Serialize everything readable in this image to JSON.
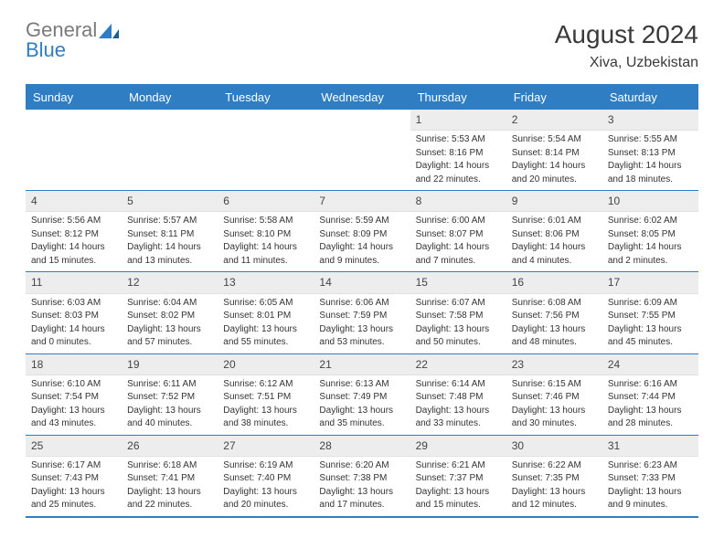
{
  "brand": {
    "part1": "General",
    "part2": "Blue"
  },
  "title": "August 2024",
  "subtitle": "Xiva, Uzbekistan",
  "colors": {
    "accent": "#2f7ec3",
    "header_bg": "#2f7ec3",
    "header_text": "#ffffff",
    "daynum_bg": "#ededed",
    "border": "#2f7ec3",
    "text": "#333333",
    "logo_gray": "#7a7a7a"
  },
  "day_names": [
    "Sunday",
    "Monday",
    "Tuesday",
    "Wednesday",
    "Thursday",
    "Friday",
    "Saturday"
  ],
  "weeks": [
    [
      {
        "blank": true
      },
      {
        "blank": true
      },
      {
        "blank": true
      },
      {
        "blank": true
      },
      {
        "num": "1",
        "sunrise": "Sunrise: 5:53 AM",
        "sunset": "Sunset: 8:16 PM",
        "daylight1": "Daylight: 14 hours",
        "daylight2": "and 22 minutes."
      },
      {
        "num": "2",
        "sunrise": "Sunrise: 5:54 AM",
        "sunset": "Sunset: 8:14 PM",
        "daylight1": "Daylight: 14 hours",
        "daylight2": "and 20 minutes."
      },
      {
        "num": "3",
        "sunrise": "Sunrise: 5:55 AM",
        "sunset": "Sunset: 8:13 PM",
        "daylight1": "Daylight: 14 hours",
        "daylight2": "and 18 minutes."
      }
    ],
    [
      {
        "num": "4",
        "sunrise": "Sunrise: 5:56 AM",
        "sunset": "Sunset: 8:12 PM",
        "daylight1": "Daylight: 14 hours",
        "daylight2": "and 15 minutes."
      },
      {
        "num": "5",
        "sunrise": "Sunrise: 5:57 AM",
        "sunset": "Sunset: 8:11 PM",
        "daylight1": "Daylight: 14 hours",
        "daylight2": "and 13 minutes."
      },
      {
        "num": "6",
        "sunrise": "Sunrise: 5:58 AM",
        "sunset": "Sunset: 8:10 PM",
        "daylight1": "Daylight: 14 hours",
        "daylight2": "and 11 minutes."
      },
      {
        "num": "7",
        "sunrise": "Sunrise: 5:59 AM",
        "sunset": "Sunset: 8:09 PM",
        "daylight1": "Daylight: 14 hours",
        "daylight2": "and 9 minutes."
      },
      {
        "num": "8",
        "sunrise": "Sunrise: 6:00 AM",
        "sunset": "Sunset: 8:07 PM",
        "daylight1": "Daylight: 14 hours",
        "daylight2": "and 7 minutes."
      },
      {
        "num": "9",
        "sunrise": "Sunrise: 6:01 AM",
        "sunset": "Sunset: 8:06 PM",
        "daylight1": "Daylight: 14 hours",
        "daylight2": "and 4 minutes."
      },
      {
        "num": "10",
        "sunrise": "Sunrise: 6:02 AM",
        "sunset": "Sunset: 8:05 PM",
        "daylight1": "Daylight: 14 hours",
        "daylight2": "and 2 minutes."
      }
    ],
    [
      {
        "num": "11",
        "sunrise": "Sunrise: 6:03 AM",
        "sunset": "Sunset: 8:03 PM",
        "daylight1": "Daylight: 14 hours",
        "daylight2": "and 0 minutes."
      },
      {
        "num": "12",
        "sunrise": "Sunrise: 6:04 AM",
        "sunset": "Sunset: 8:02 PM",
        "daylight1": "Daylight: 13 hours",
        "daylight2": "and 57 minutes."
      },
      {
        "num": "13",
        "sunrise": "Sunrise: 6:05 AM",
        "sunset": "Sunset: 8:01 PM",
        "daylight1": "Daylight: 13 hours",
        "daylight2": "and 55 minutes."
      },
      {
        "num": "14",
        "sunrise": "Sunrise: 6:06 AM",
        "sunset": "Sunset: 7:59 PM",
        "daylight1": "Daylight: 13 hours",
        "daylight2": "and 53 minutes."
      },
      {
        "num": "15",
        "sunrise": "Sunrise: 6:07 AM",
        "sunset": "Sunset: 7:58 PM",
        "daylight1": "Daylight: 13 hours",
        "daylight2": "and 50 minutes."
      },
      {
        "num": "16",
        "sunrise": "Sunrise: 6:08 AM",
        "sunset": "Sunset: 7:56 PM",
        "daylight1": "Daylight: 13 hours",
        "daylight2": "and 48 minutes."
      },
      {
        "num": "17",
        "sunrise": "Sunrise: 6:09 AM",
        "sunset": "Sunset: 7:55 PM",
        "daylight1": "Daylight: 13 hours",
        "daylight2": "and 45 minutes."
      }
    ],
    [
      {
        "num": "18",
        "sunrise": "Sunrise: 6:10 AM",
        "sunset": "Sunset: 7:54 PM",
        "daylight1": "Daylight: 13 hours",
        "daylight2": "and 43 minutes."
      },
      {
        "num": "19",
        "sunrise": "Sunrise: 6:11 AM",
        "sunset": "Sunset: 7:52 PM",
        "daylight1": "Daylight: 13 hours",
        "daylight2": "and 40 minutes."
      },
      {
        "num": "20",
        "sunrise": "Sunrise: 6:12 AM",
        "sunset": "Sunset: 7:51 PM",
        "daylight1": "Daylight: 13 hours",
        "daylight2": "and 38 minutes."
      },
      {
        "num": "21",
        "sunrise": "Sunrise: 6:13 AM",
        "sunset": "Sunset: 7:49 PM",
        "daylight1": "Daylight: 13 hours",
        "daylight2": "and 35 minutes."
      },
      {
        "num": "22",
        "sunrise": "Sunrise: 6:14 AM",
        "sunset": "Sunset: 7:48 PM",
        "daylight1": "Daylight: 13 hours",
        "daylight2": "and 33 minutes."
      },
      {
        "num": "23",
        "sunrise": "Sunrise: 6:15 AM",
        "sunset": "Sunset: 7:46 PM",
        "daylight1": "Daylight: 13 hours",
        "daylight2": "and 30 minutes."
      },
      {
        "num": "24",
        "sunrise": "Sunrise: 6:16 AM",
        "sunset": "Sunset: 7:44 PM",
        "daylight1": "Daylight: 13 hours",
        "daylight2": "and 28 minutes."
      }
    ],
    [
      {
        "num": "25",
        "sunrise": "Sunrise: 6:17 AM",
        "sunset": "Sunset: 7:43 PM",
        "daylight1": "Daylight: 13 hours",
        "daylight2": "and 25 minutes."
      },
      {
        "num": "26",
        "sunrise": "Sunrise: 6:18 AM",
        "sunset": "Sunset: 7:41 PM",
        "daylight1": "Daylight: 13 hours",
        "daylight2": "and 22 minutes."
      },
      {
        "num": "27",
        "sunrise": "Sunrise: 6:19 AM",
        "sunset": "Sunset: 7:40 PM",
        "daylight1": "Daylight: 13 hours",
        "daylight2": "and 20 minutes."
      },
      {
        "num": "28",
        "sunrise": "Sunrise: 6:20 AM",
        "sunset": "Sunset: 7:38 PM",
        "daylight1": "Daylight: 13 hours",
        "daylight2": "and 17 minutes."
      },
      {
        "num": "29",
        "sunrise": "Sunrise: 6:21 AM",
        "sunset": "Sunset: 7:37 PM",
        "daylight1": "Daylight: 13 hours",
        "daylight2": "and 15 minutes."
      },
      {
        "num": "30",
        "sunrise": "Sunrise: 6:22 AM",
        "sunset": "Sunset: 7:35 PM",
        "daylight1": "Daylight: 13 hours",
        "daylight2": "and 12 minutes."
      },
      {
        "num": "31",
        "sunrise": "Sunrise: 6:23 AM",
        "sunset": "Sunset: 7:33 PM",
        "daylight1": "Daylight: 13 hours",
        "daylight2": "and 9 minutes."
      }
    ]
  ]
}
